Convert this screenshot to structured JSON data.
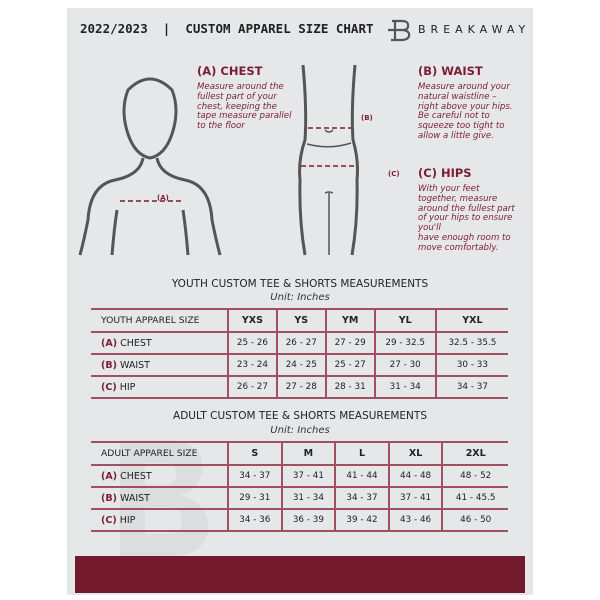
{
  "header": {
    "title": "2022/2023  |  CUSTOM APPAREL SIZE CHART",
    "brand": "BREAKAWAY"
  },
  "chest": {
    "title": "(A) CHEST",
    "marker": "(A)",
    "text": [
      "Measure around the",
      "fullest part of your",
      "chest, keeping the",
      "tape measure parallel",
      "to the floor"
    ]
  },
  "waist": {
    "title": "(B) WAIST",
    "marker": "(B)",
    "text": [
      "Measure around your",
      "natural waistline –",
      "right above your hips.",
      "Be careful not to",
      "squeeze too tight to",
      "allow a little give."
    ]
  },
  "hips": {
    "title": "(C) HIPS",
    "marker": "(C)",
    "text": [
      "With your feet",
      "together, measure",
      "around the fullest part",
      "of your hips to ensure",
      "you'll",
      "have enough room to",
      "move comfortably."
    ]
  },
  "youth": {
    "heading": "YOUTH CUSTOM TEE & SHORTS MEASUREMENTS",
    "unit": "Unit: Inches",
    "label": "YOUTH APPAREL SIZE",
    "sizes": [
      "YXS",
      "YS",
      "YM",
      "YL",
      "YXL"
    ],
    "rows": [
      {
        "code": "(A)",
        "name": "CHEST",
        "values": [
          "25 - 26",
          "26 - 27",
          "27 - 29",
          "29 - 32.5",
          "32.5 - 35.5"
        ]
      },
      {
        "code": "(B)",
        "name": "WAIST",
        "values": [
          "23 - 24",
          "24 - 25",
          "25 - 27",
          "27 - 30",
          "30 - 33"
        ]
      },
      {
        "code": "(C)",
        "name": "HIP",
        "values": [
          "26 - 27",
          "27 - 28",
          "28 - 31",
          "31 - 34",
          "34 - 37"
        ]
      }
    ]
  },
  "adult": {
    "heading": "ADULT CUSTOM TEE & SHORTS MEASUREMENTS",
    "unit": "Unit: Inches",
    "label": "ADULT APPAREL SIZE",
    "sizes": [
      "S",
      "M",
      "L",
      "XL",
      "2XL"
    ],
    "rows": [
      {
        "code": "(A)",
        "name": "CHEST",
        "values": [
          "34 - 37",
          "37 - 41",
          "41 - 44",
          "44 - 48",
          "48 - 52"
        ]
      },
      {
        "code": "(B)",
        "name": "WAIST",
        "values": [
          "29 - 31",
          "31 - 34",
          "34 - 37",
          "37 - 41",
          "41 - 45.5"
        ]
      },
      {
        "code": "(C)",
        "name": "HIP",
        "values": [
          "34 - 36",
          "36 - 39",
          "39 - 42",
          "43 - 46",
          "46 - 50"
        ]
      }
    ]
  },
  "colors": {
    "accent": "#7a1f33",
    "footer": "#741a2e",
    "panel": "#e6e7e9"
  }
}
